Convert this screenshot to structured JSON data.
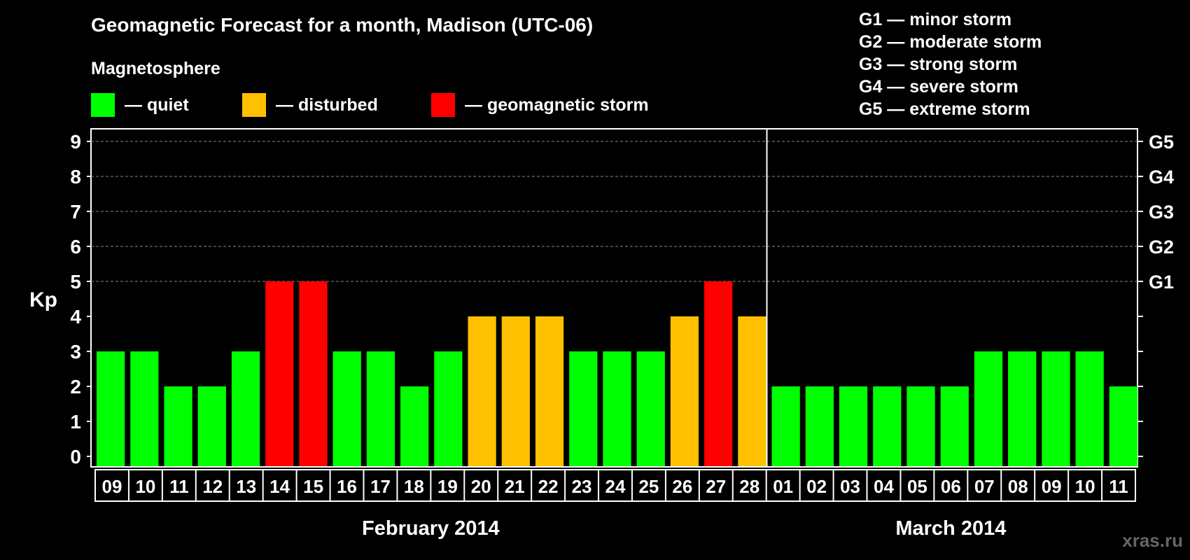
{
  "title": "Geomagnetic Forecast for a month, Madison (UTC-06)",
  "magnetosphere_label": "Magnetosphere",
  "legend": [
    {
      "label": "— quiet",
      "color": "#00ff00"
    },
    {
      "label": "— disturbed",
      "color": "#ffc000"
    },
    {
      "label": "— geomagnetic storm",
      "color": "#ff0000"
    }
  ],
  "storm_scale": [
    "G1 — minor storm",
    "G2 — moderate storm",
    "G3 — strong storm",
    "G4 — severe storm",
    "G5 — extreme storm"
  ],
  "watermark": "xras.ru",
  "chart_data": {
    "type": "bar",
    "ylabel": "Kp",
    "ylim": [
      0,
      9
    ],
    "yticks": [
      "0",
      "1",
      "2",
      "3",
      "4",
      "5",
      "6",
      "7",
      "8",
      "9"
    ],
    "right_axis_labels": [
      {
        "kp": 5,
        "label": "G1"
      },
      {
        "kp": 6,
        "label": "G2"
      },
      {
        "kp": 7,
        "label": "G3"
      },
      {
        "kp": 8,
        "label": "G4"
      },
      {
        "kp": 9,
        "label": "G5"
      }
    ],
    "categories": [
      "09",
      "10",
      "11",
      "12",
      "13",
      "14",
      "15",
      "16",
      "17",
      "18",
      "19",
      "20",
      "21",
      "22",
      "23",
      "24",
      "25",
      "26",
      "27",
      "28",
      "01",
      "02",
      "03",
      "04",
      "05",
      "06",
      "07",
      "08",
      "09",
      "10",
      "11"
    ],
    "values": [
      3,
      3,
      2,
      2,
      3,
      5,
      5,
      3,
      3,
      2,
      3,
      4,
      4,
      4,
      3,
      3,
      3,
      4,
      5,
      4,
      2,
      2,
      2,
      2,
      2,
      2,
      3,
      3,
      3,
      3,
      2
    ],
    "month_labels": [
      {
        "label": "February 2014",
        "start": 0,
        "end": 19
      },
      {
        "label": "March 2014",
        "start": 20,
        "end": 30
      }
    ],
    "month_divider_after_index": 19,
    "grid": "dashed at Kp 5-9",
    "status_colors": {
      "quiet": "#00ff00",
      "disturbed": "#ffc000",
      "storm": "#ff0000"
    }
  }
}
